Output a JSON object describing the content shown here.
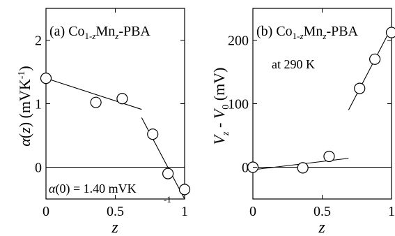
{
  "chart_data": [
    {
      "type": "scatter",
      "panel_label": "(a)",
      "material": {
        "base": "Co",
        "sub_a": "1-",
        "sub_a_var": "z",
        "mid": "Mn",
        "sub_b_var": "z",
        "tail": "-PBA"
      },
      "ylabel": {
        "greek": "α",
        "var": "z",
        "unit_a": "mVK",
        "unit_sup": "-1"
      },
      "xlabel": "z",
      "xlim": [
        0,
        1
      ],
      "ylim": [
        -0.5,
        2.5
      ],
      "xticks": [
        {
          "value": 0,
          "label": "0"
        },
        {
          "value": 0.5,
          "label": "0.5"
        },
        {
          "value": 1,
          "label": "1"
        }
      ],
      "yticks": [
        {
          "value": 0,
          "label": "0"
        },
        {
          "value": 1,
          "label": "1"
        },
        {
          "value": 2,
          "label": "2"
        }
      ],
      "zero_line": true,
      "points": [
        {
          "x": 0,
          "y": 1.4
        },
        {
          "x": 0.36,
          "y": 1.02
        },
        {
          "x": 0.55,
          "y": 1.08
        },
        {
          "x": 0.77,
          "y": 0.52
        },
        {
          "x": 0.88,
          "y": -0.1
        },
        {
          "x": 1.0,
          "y": -0.35
        }
      ],
      "fit_lines": [
        {
          "x1": 0,
          "y1": 1.4,
          "x2": 0.69,
          "y2": 0.91
        },
        {
          "x1": 0.69,
          "y1": 0.78,
          "x2": 1.0,
          "y2": -0.5
        }
      ],
      "annotation": {
        "greek": "α",
        "paren": "(0) = 1.40 mVK",
        "sup": "-1"
      }
    },
    {
      "type": "scatter",
      "panel_label": "(b)",
      "material": {
        "base": "Co",
        "sub_a": "1-",
        "sub_a_var": "z",
        "mid": "Mn",
        "sub_b_var": "z",
        "tail": "-PBA"
      },
      "ylabel": {
        "v1": "V",
        "v1_sub": "z",
        "dash": " - ",
        "v2": "V",
        "v2_sub": "0",
        "unit": " (mV)"
      },
      "xlabel": "z",
      "xlim": [
        0,
        1
      ],
      "ylim": [
        -50,
        250
      ],
      "xticks": [
        {
          "value": 0,
          "label": "0"
        },
        {
          "value": 0.5,
          "label": "0.5"
        },
        {
          "value": 1,
          "label": "1"
        }
      ],
      "yticks": [
        {
          "value": 0,
          "label": "0"
        },
        {
          "value": 100,
          "label": "100"
        },
        {
          "value": 200,
          "label": "200"
        }
      ],
      "zero_line": true,
      "points": [
        {
          "x": 0,
          "y": 0
        },
        {
          "x": 0.36,
          "y": -1
        },
        {
          "x": 0.55,
          "y": 17
        },
        {
          "x": 0.77,
          "y": 124
        },
        {
          "x": 0.88,
          "y": 170
        },
        {
          "x": 1.0,
          "y": 212
        }
      ],
      "fit_lines": [
        {
          "x1": 0,
          "y1": -4,
          "x2": 0.69,
          "y2": 14
        },
        {
          "x1": 0.69,
          "y1": 90,
          "x2": 1.0,
          "y2": 220
        }
      ],
      "annotation_text": "at 290 K"
    }
  ]
}
